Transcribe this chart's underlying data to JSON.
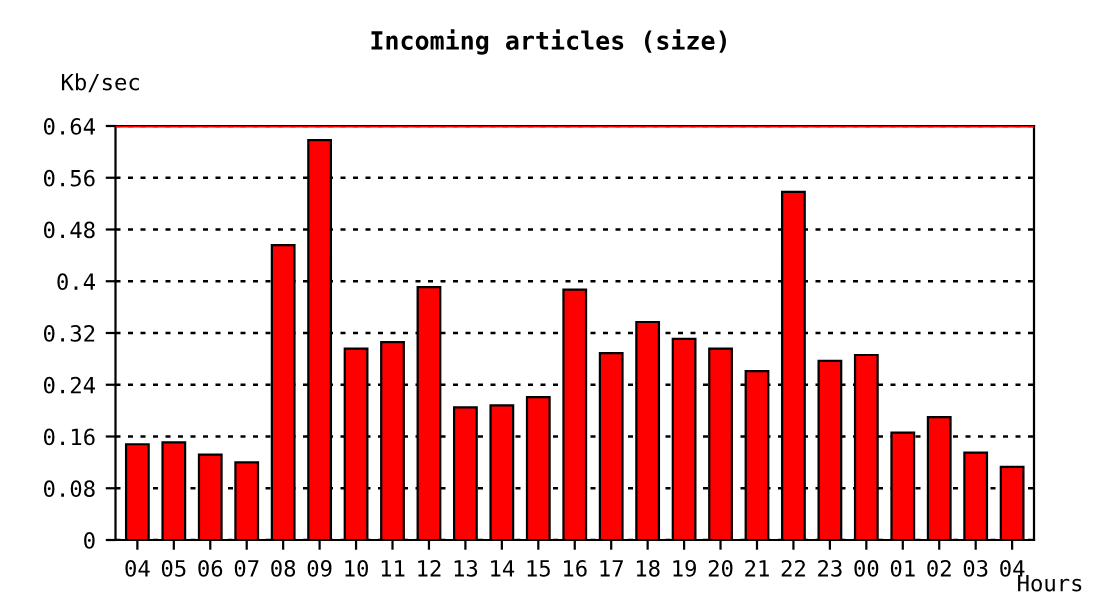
{
  "chart_data": {
    "type": "bar",
    "title": "Incoming articles (size)",
    "ylabel": "Kb/sec",
    "xlabel": "Hours",
    "categories": [
      "04",
      "05",
      "06",
      "07",
      "08",
      "09",
      "10",
      "11",
      "12",
      "13",
      "14",
      "15",
      "16",
      "17",
      "18",
      "19",
      "20",
      "21",
      "22",
      "23",
      "00",
      "01",
      "02",
      "03",
      "04"
    ],
    "values": [
      0.148,
      0.151,
      0.132,
      0.12,
      0.456,
      0.618,
      0.296,
      0.306,
      0.391,
      0.205,
      0.208,
      0.221,
      0.387,
      0.289,
      0.337,
      0.311,
      0.296,
      0.261,
      0.538,
      0.277,
      0.286,
      0.166,
      0.19,
      0.135,
      0.113
    ],
    "color": "#ff0000",
    "ylim": [
      0,
      0.64
    ],
    "yticks": [
      0,
      0.08,
      0.16,
      0.24,
      0.32,
      0.4,
      0.48,
      0.56,
      0.64
    ],
    "ref_lines": [
      {
        "axis": "y",
        "value": 0.64,
        "color": "#ff0000",
        "line_style": "solid"
      }
    ],
    "grid": "y",
    "legend": false
  }
}
